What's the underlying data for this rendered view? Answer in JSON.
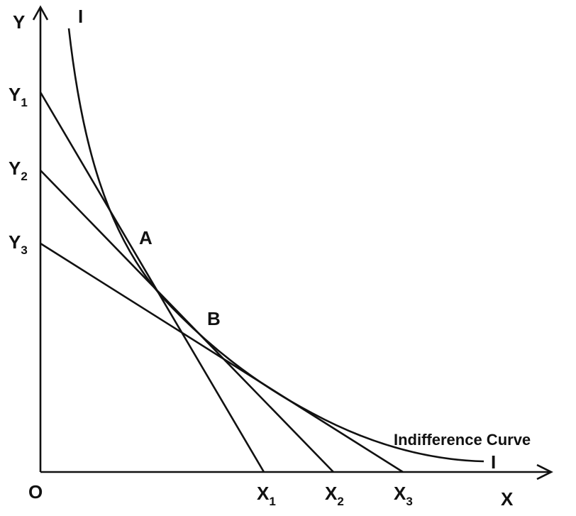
{
  "axes": {
    "y": "Y",
    "x": "X",
    "origin": "O"
  },
  "y_intercepts": [
    {
      "base": "Y",
      "sub": "1"
    },
    {
      "base": "Y",
      "sub": "2"
    },
    {
      "base": "Y",
      "sub": "3"
    }
  ],
  "x_intercepts": [
    {
      "base": "X",
      "sub": "1"
    },
    {
      "base": "X",
      "sub": "2"
    },
    {
      "base": "X",
      "sub": "3"
    }
  ],
  "curve": {
    "label_top": "I",
    "label_end": "I",
    "name": "Indifference Curve"
  },
  "points": [
    "A",
    "B"
  ]
}
